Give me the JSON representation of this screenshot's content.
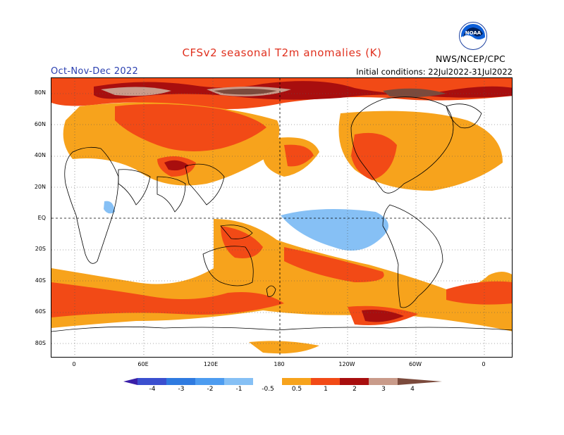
{
  "header": {
    "title": "CFSv2 seasonal T2m anomalies (K)",
    "season": "Oct-Nov-Dec 2022",
    "initial_conditions": "Initial conditions: 22Jul2022-31Jul2022",
    "agency": "NWS/NCEP/CPC",
    "logo_text": "NOAA"
  },
  "axes": {
    "lat_labels": [
      "80N",
      "60N",
      "40N",
      "20N",
      "EQ",
      "20S",
      "40S",
      "60S",
      "80S"
    ],
    "lon_labels": [
      "0",
      "60E",
      "120E",
      "180",
      "120W",
      "60W",
      "0"
    ]
  },
  "legend": {
    "labels": [
      "-4",
      "-3",
      "-2",
      "-1",
      "-0.5",
      "0.5",
      "1",
      "2",
      "3",
      "4"
    ],
    "colors": [
      "#3a1fa8",
      "#3b4fcf",
      "#2f7be0",
      "#4d9cf0",
      "#86c0f5",
      "#ffffff",
      "#f7a31c",
      "#f24a16",
      "#a80e0e",
      "#c99b8a",
      "#7b4a3c"
    ]
  },
  "colors": {
    "title": "#e0301e",
    "season": "#2a3fb0"
  }
}
